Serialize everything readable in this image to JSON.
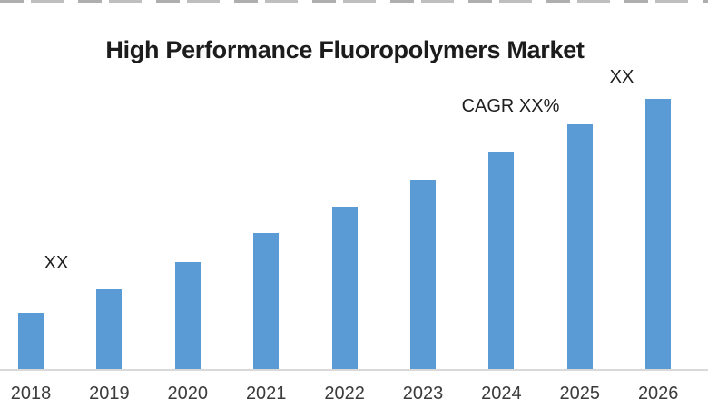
{
  "chart_data": {
    "type": "bar",
    "title": "High Performance Fluoropolymers Market",
    "categories": [
      "2018",
      "2019",
      "2020",
      "2021",
      "2022",
      "2023",
      "2024",
      "2025",
      "2026"
    ],
    "values": [
      63,
      89,
      119,
      151,
      180,
      210,
      240,
      271,
      299
    ],
    "values_shown_as": "XX",
    "xlabel": "",
    "ylabel": "",
    "y_axis_visible": false,
    "grid": false,
    "legend": false,
    "bar_color": "#5b9bd5",
    "axis_line_color": "#d9d9d9",
    "title_color": "#1c1c1c",
    "annotations": {
      "first_bar_label": "XX",
      "cagr_label": "CAGR XX%",
      "last_bar_label": "XX"
    }
  }
}
